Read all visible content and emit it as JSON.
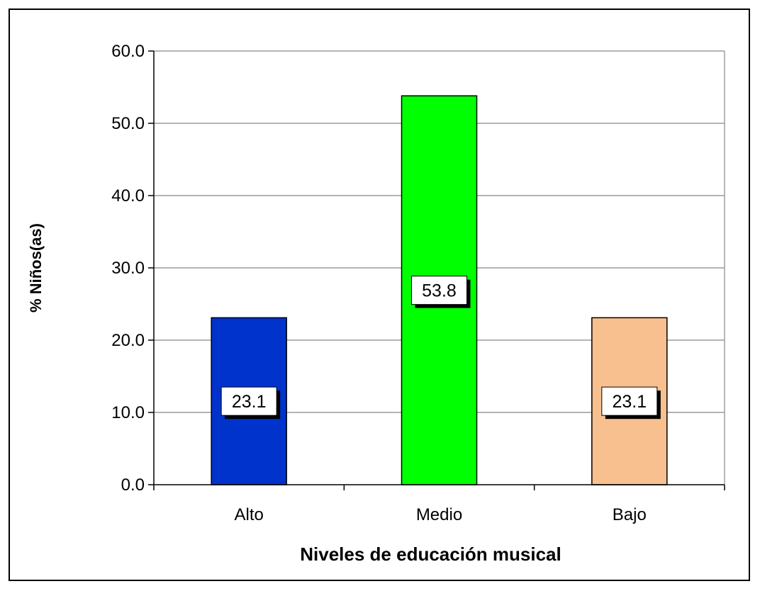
{
  "chart_data": {
    "type": "bar",
    "title": "",
    "xlabel": "Niveles de educación musical",
    "ylabel": "% Niños(as)",
    "categories": [
      "Alto",
      "Medio",
      "Bajo"
    ],
    "values": [
      23.1,
      53.8,
      23.1
    ],
    "value_labels": [
      "23.1",
      "53.8",
      "23.1"
    ],
    "colors": [
      "#0033CC",
      "#00FF00",
      "#F8C08E"
    ],
    "ylim": [
      0,
      60
    ],
    "yticks": [
      0,
      10,
      20,
      30,
      40,
      50,
      60
    ],
    "ytick_labels": [
      "0.0",
      "10.0",
      "20.0",
      "30.0",
      "40.0",
      "50.0",
      "60.0"
    ],
    "grid": true,
    "legend": "none"
  }
}
